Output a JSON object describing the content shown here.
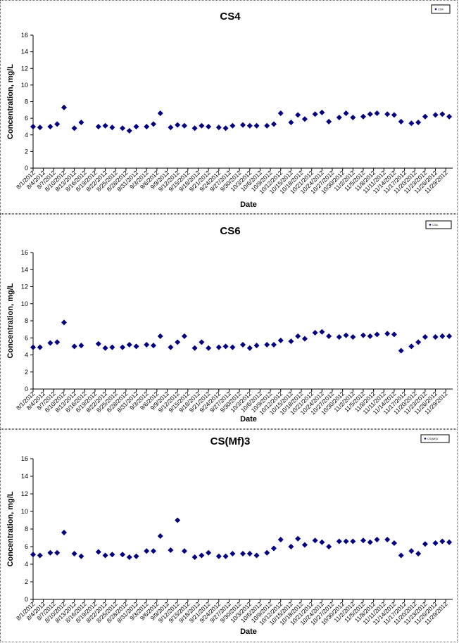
{
  "chart_data": [
    {
      "type": "scatter",
      "title": "CS4",
      "xlabel": "Date",
      "ylabel": "Concentration, mg/L",
      "ylim": [
        0,
        16
      ],
      "yticks": [
        0,
        2,
        4,
        6,
        8,
        10,
        12,
        14,
        16
      ],
      "xlim": [
        "8/1/2012",
        "12/1/2012"
      ],
      "xticks": [
        "8/1/2012",
        "8/4/2012",
        "8/7/2012",
        "8/10/2012",
        "8/13/2012",
        "8/16/2012",
        "8/19/2012",
        "8/22/2012",
        "8/25/2012",
        "8/28/2012",
        "8/31/2012",
        "9/3/2012",
        "9/6/2012",
        "9/9/2012",
        "9/12/2012",
        "9/15/2012",
        "9/18/2012",
        "9/21/2012",
        "9/24/2012",
        "9/27/2012",
        "9/30/2012",
        "10/3/2012",
        "10/6/2012",
        "10/9/2012",
        "10/12/2012",
        "10/15/2012",
        "10/18/2012",
        "10/21/2012",
        "10/24/2012",
        "10/27/2012",
        "10/30/2012",
        "11/2/2012",
        "11/5/2012",
        "11/8/2012",
        "11/11/2012",
        "11/14/2012",
        "11/17/2012",
        "11/20/2012",
        "11/23/2012",
        "11/26/2012",
        "11/29/2012"
      ],
      "grid": false,
      "legend": "top-right",
      "marker_color": "#000080",
      "series": [
        {
          "name": "CS4",
          "x": [
            "8/1/2012",
            "8/3/2012",
            "8/6/2012",
            "8/8/2012",
            "8/10/2012",
            "8/13/2012",
            "8/15/2012",
            "8/20/2012",
            "8/22/2012",
            "8/24/2012",
            "8/27/2012",
            "8/29/2012",
            "8/31/2012",
            "9/3/2012",
            "9/5/2012",
            "9/7/2012",
            "9/10/2012",
            "9/12/2012",
            "9/14/2012",
            "9/17/2012",
            "9/19/2012",
            "9/21/2012",
            "9/24/2012",
            "9/26/2012",
            "9/28/2012",
            "10/1/2012",
            "10/3/2012",
            "10/5/2012",
            "10/8/2012",
            "10/10/2012",
            "10/12/2012",
            "10/15/2012",
            "10/17/2012",
            "10/19/2012",
            "10/22/2012",
            "10/24/2012",
            "10/26/2012",
            "10/29/2012",
            "10/31/2012",
            "11/2/2012",
            "11/5/2012",
            "11/7/2012",
            "11/9/2012",
            "11/12/2012",
            "11/14/2012",
            "11/16/2012",
            "11/19/2012",
            "11/21/2012",
            "11/23/2012",
            "11/26/2012",
            "11/28/2012",
            "11/30/2012"
          ],
          "y": [
            5.0,
            4.9,
            5.0,
            5.3,
            7.3,
            4.8,
            5.5,
            5.0,
            5.1,
            4.9,
            4.8,
            4.5,
            5.0,
            5.0,
            5.3,
            6.6,
            4.9,
            5.2,
            5.1,
            4.8,
            5.1,
            5.0,
            4.9,
            4.8,
            5.1,
            5.2,
            5.1,
            5.1,
            5.1,
            5.3,
            6.6,
            5.5,
            6.4,
            5.9,
            6.5,
            6.7,
            5.6,
            6.1,
            6.6,
            6.1,
            6.2,
            6.5,
            6.6,
            6.5,
            6.4,
            5.6,
            5.4,
            5.5,
            6.2,
            6.4,
            6.5,
            6.2
          ]
        }
      ]
    },
    {
      "type": "scatter",
      "title": "CS6",
      "xlabel": "Date",
      "ylabel": "Concentration, mg/L",
      "ylim": [
        0,
        16
      ],
      "yticks": [
        0,
        2,
        4,
        6,
        8,
        10,
        12,
        14,
        16
      ],
      "xlim": [
        "8/1/2012",
        "12/1/2012"
      ],
      "xticks": [
        "8/1/2012",
        "8/4/2012",
        "8/7/2012",
        "8/10/2012",
        "8/13/2012",
        "8/16/2012",
        "8/19/2012",
        "8/22/2012",
        "8/25/2012",
        "8/28/2012",
        "8/31/2012",
        "9/3/2012",
        "9/6/2012",
        "9/9/2012",
        "9/12/2012",
        "9/15/2012",
        "9/18/2012",
        "9/21/2012",
        "9/24/2012",
        "9/27/2012",
        "9/30/2012",
        "10/3/2012",
        "10/6/2012",
        "10/9/2012",
        "10/12/2012",
        "10/15/2012",
        "10/18/2012",
        "10/21/2012",
        "10/24/2012",
        "10/27/2012",
        "10/30/2012",
        "11/2/2012",
        "11/5/2012",
        "11/8/2012",
        "11/11/2012",
        "11/14/2012",
        "11/17/2012",
        "11/20/2012",
        "11/23/2012",
        "11/26/2012",
        "11/29/2012"
      ],
      "grid": false,
      "legend": "top-right",
      "marker_color": "#000080",
      "series": [
        {
          "name": "CS6",
          "x": [
            "8/1/2012",
            "8/3/2012",
            "8/6/2012",
            "8/8/2012",
            "8/10/2012",
            "8/13/2012",
            "8/15/2012",
            "8/20/2012",
            "8/22/2012",
            "8/24/2012",
            "8/27/2012",
            "8/29/2012",
            "8/31/2012",
            "9/3/2012",
            "9/5/2012",
            "9/7/2012",
            "9/10/2012",
            "9/12/2012",
            "9/14/2012",
            "9/17/2012",
            "9/19/2012",
            "9/21/2012",
            "9/24/2012",
            "9/26/2012",
            "9/28/2012",
            "10/1/2012",
            "10/3/2012",
            "10/5/2012",
            "10/8/2012",
            "10/10/2012",
            "10/12/2012",
            "10/15/2012",
            "10/17/2012",
            "10/19/2012",
            "10/22/2012",
            "10/24/2012",
            "10/26/2012",
            "10/29/2012",
            "10/31/2012",
            "11/2/2012",
            "11/5/2012",
            "11/7/2012",
            "11/9/2012",
            "11/12/2012",
            "11/14/2012",
            "11/16/2012",
            "11/19/2012",
            "11/21/2012",
            "11/23/2012",
            "11/26/2012",
            "11/28/2012",
            "11/30/2012"
          ],
          "y": [
            4.9,
            4.9,
            5.4,
            5.5,
            7.8,
            5.0,
            5.1,
            5.3,
            4.8,
            4.9,
            4.9,
            5.2,
            5.0,
            5.2,
            5.1,
            6.2,
            4.9,
            5.5,
            6.2,
            4.8,
            5.5,
            4.8,
            4.9,
            5.0,
            4.9,
            5.2,
            4.8,
            5.1,
            5.2,
            5.2,
            5.7,
            5.6,
            6.2,
            5.9,
            6.6,
            6.7,
            6.2,
            6.1,
            6.3,
            6.1,
            6.3,
            6.2,
            6.4,
            6.5,
            6.4,
            4.5,
            5.0,
            5.5,
            6.1,
            6.1,
            6.2,
            6.2
          ]
        }
      ]
    },
    {
      "type": "scatter",
      "title": "CS(Mf)3",
      "xlabel": "Date",
      "ylabel": "Concentration, mg/L",
      "ylim": [
        0,
        16
      ],
      "yticks": [
        0,
        2,
        4,
        6,
        8,
        10,
        12,
        14,
        16
      ],
      "xlim": [
        "8/1/2012",
        "12/1/2012"
      ],
      "xticks": [
        "8/1/2012",
        "8/4/2012",
        "8/7/2012",
        "8/10/2012",
        "8/13/2012",
        "8/16/2012",
        "8/19/2012",
        "8/22/2012",
        "8/25/2012",
        "8/28/2012",
        "8/31/2012",
        "9/3/2012",
        "9/6/2012",
        "9/9/2012",
        "9/12/2012",
        "9/15/2012",
        "9/18/2012",
        "9/21/2012",
        "9/24/2012",
        "9/27/2012",
        "9/30/2012",
        "10/3/2012",
        "10/6/2012",
        "10/9/2012",
        "10/12/2012",
        "10/15/2012",
        "10/18/2012",
        "10/21/2012",
        "10/24/2012",
        "10/27/2012",
        "10/30/2012",
        "11/2/2012",
        "11/5/2012",
        "11/8/2012",
        "11/11/2012",
        "11/14/2012",
        "11/17/2012",
        "11/20/2012",
        "11/23/2012",
        "11/26/2012",
        "11/29/2012"
      ],
      "grid": false,
      "legend": "top-right",
      "marker_color": "#000080",
      "series": [
        {
          "name": "CS(Mf)3",
          "x": [
            "8/1/2012",
            "8/3/2012",
            "8/6/2012",
            "8/8/2012",
            "8/10/2012",
            "8/13/2012",
            "8/15/2012",
            "8/20/2012",
            "8/22/2012",
            "8/24/2012",
            "8/27/2012",
            "8/29/2012",
            "8/31/2012",
            "9/3/2012",
            "9/5/2012",
            "9/7/2012",
            "9/10/2012",
            "9/12/2012",
            "9/14/2012",
            "9/17/2012",
            "9/19/2012",
            "9/21/2012",
            "9/24/2012",
            "9/26/2012",
            "9/28/2012",
            "10/1/2012",
            "10/3/2012",
            "10/5/2012",
            "10/8/2012",
            "10/10/2012",
            "10/12/2012",
            "10/15/2012",
            "10/17/2012",
            "10/19/2012",
            "10/22/2012",
            "10/24/2012",
            "10/26/2012",
            "10/29/2012",
            "10/31/2012",
            "11/2/2012",
            "11/5/2012",
            "11/7/2012",
            "11/9/2012",
            "11/12/2012",
            "11/14/2012",
            "11/16/2012",
            "11/19/2012",
            "11/21/2012",
            "11/23/2012",
            "11/26/2012",
            "11/28/2012",
            "11/30/2012"
          ],
          "y": [
            5.1,
            5.0,
            5.3,
            5.3,
            7.6,
            5.2,
            4.9,
            5.4,
            5.0,
            5.1,
            5.1,
            4.8,
            4.9,
            5.5,
            5.5,
            7.2,
            5.6,
            9.0,
            5.5,
            4.8,
            5.0,
            5.3,
            4.9,
            4.9,
            5.2,
            5.2,
            5.2,
            5.0,
            5.3,
            5.8,
            6.8,
            6.0,
            6.9,
            6.2,
            6.7,
            6.5,
            6.0,
            6.6,
            6.6,
            6.6,
            6.7,
            6.5,
            6.8,
            6.8,
            6.4,
            5.0,
            5.5,
            5.2,
            6.3,
            6.4,
            6.6,
            6.5
          ]
        }
      ]
    }
  ]
}
